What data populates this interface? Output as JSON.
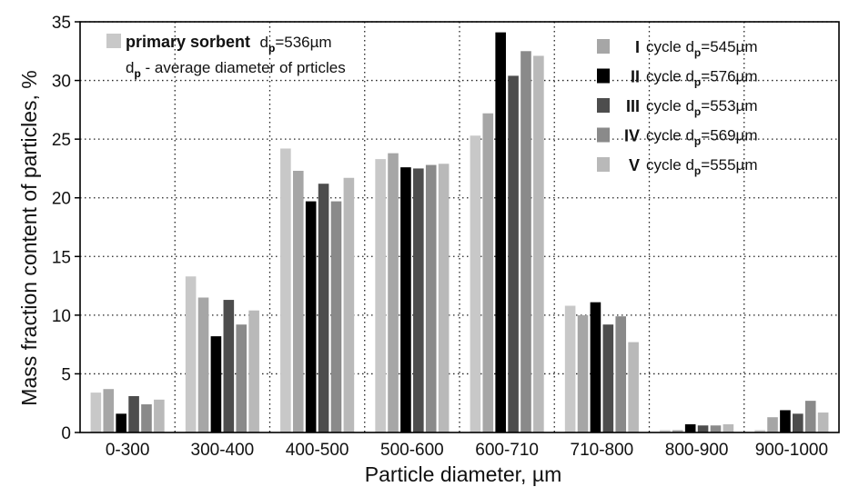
{
  "chart_data": {
    "type": "bar",
    "xlabel": "Particle diameter, µm",
    "ylabel": "Mass fraction content of particles, %",
    "ylim": [
      0,
      35
    ],
    "yticks": [
      0,
      5,
      10,
      15,
      20,
      25,
      30,
      35
    ],
    "grid": true,
    "categories": [
      "0-300",
      "300-400",
      "400-500",
      "500-600",
      "600-710",
      "710-800",
      "800-900",
      "900-1000"
    ],
    "series": [
      {
        "name": "primary sorbent",
        "dp": "536µm",
        "color": "#c8c8c8",
        "values": [
          3.4,
          13.3,
          24.2,
          23.3,
          25.3,
          10.8,
          0.2,
          0.2
        ]
      },
      {
        "name": "I",
        "dp": "545µm",
        "color": "#a6a6a6",
        "values": [
          3.7,
          11.5,
          22.3,
          23.8,
          27.2,
          10.0,
          0.2,
          1.3
        ]
      },
      {
        "name": "II",
        "dp": "576µm",
        "color": "#000000",
        "values": [
          1.6,
          8.2,
          19.7,
          22.6,
          34.1,
          11.1,
          0.7,
          1.9
        ]
      },
      {
        "name": "III",
        "dp": "553µm",
        "color": "#4d4d4d",
        "values": [
          3.1,
          11.3,
          21.2,
          22.5,
          30.4,
          9.2,
          0.6,
          1.6
        ]
      },
      {
        "name": "IV",
        "dp": "569µm",
        "color": "#8a8a8a",
        "values": [
          2.4,
          9.2,
          19.7,
          22.8,
          32.5,
          9.9,
          0.6,
          2.7
        ]
      },
      {
        "name": "V",
        "dp": "555µm",
        "color": "#b9b9b9",
        "values": [
          2.8,
          10.4,
          21.7,
          22.9,
          32.1,
          7.7,
          0.7,
          1.7
        ]
      }
    ],
    "legend": {
      "primary_label": "primary sorbent",
      "d_symbol": "d",
      "p_sub": "p",
      "note_rest": " - average diameter of prticles",
      "cycle_word": "cycle",
      "primary_placement": "top-left",
      "cycles_placement": "top-right"
    }
  }
}
